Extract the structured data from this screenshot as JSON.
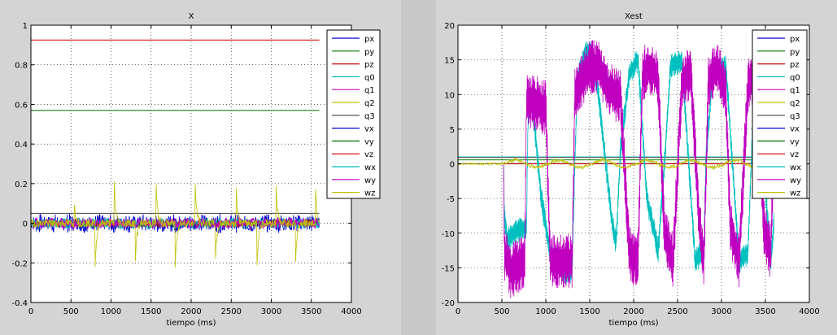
{
  "colors": {
    "px": "#0000cc",
    "py": "#007700",
    "pz": "#cc0000",
    "q0": "#00bfbf",
    "q1": "#bf00bf",
    "q2": "#bfbf00",
    "q3": "#404040",
    "vx": "#0000cc",
    "vy": "#007700",
    "vz": "#cc0000",
    "wx": "#00bfbf",
    "wy": "#bf00bf",
    "wz": "#bfbf00"
  },
  "chart_data": [
    {
      "type": "line",
      "title": "X",
      "xlabel": "tiempo (ms)",
      "ylabel": "",
      "xlim": [
        0,
        4000
      ],
      "ylim": [
        -0.4,
        1
      ],
      "xticks": [
        0,
        500,
        1000,
        1500,
        2000,
        2500,
        3000,
        3500,
        4000
      ],
      "yticks": [
        -0.4,
        -0.2,
        0,
        0.2,
        0.4,
        0.6,
        0.8,
        1
      ],
      "ytick_labels": [
        "-0.4",
        "-0.2",
        "0",
        "0.2",
        "0.4",
        "0.6",
        "0.8",
        "1"
      ],
      "grid": true,
      "legend": "top-right",
      "x_end": 3600,
      "series": [
        {
          "name": "px",
          "key": "px",
          "kind": "const",
          "value": 0.0
        },
        {
          "name": "py",
          "key": "py",
          "kind": "const",
          "value": 0.57
        },
        {
          "name": "pz",
          "key": "pz",
          "kind": "const",
          "value": 0.925
        },
        {
          "name": "q0",
          "key": "q0",
          "kind": "const",
          "value": 1.0
        },
        {
          "name": "q1",
          "key": "q1",
          "kind": "const",
          "value": 0.0
        },
        {
          "name": "q2",
          "key": "q2",
          "kind": "const",
          "value": 0.0
        },
        {
          "name": "q3",
          "key": "q3",
          "kind": "const",
          "value": 0.05
        },
        {
          "name": "vx",
          "key": "vx",
          "kind": "noise",
          "amp": 0.05,
          "freq": 60
        },
        {
          "name": "vy",
          "key": "vy",
          "kind": "noise",
          "amp": 0.02,
          "freq": 45
        },
        {
          "name": "vz",
          "key": "vz",
          "kind": "noise",
          "amp": 0.02,
          "freq": 40
        },
        {
          "name": "wx",
          "key": "wx",
          "kind": "noise",
          "amp": 0.03,
          "freq": 55
        },
        {
          "name": "wy",
          "key": "wy",
          "kind": "noise",
          "amp": 0.03,
          "freq": 50
        },
        {
          "name": "wz",
          "key": "wz",
          "kind": "spikes",
          "amp": 0.02,
          "spikes": [
            [
              540,
              0.12
            ],
            [
              800,
              -0.24
            ],
            [
              1040,
              0.21
            ],
            [
              1300,
              -0.24
            ],
            [
              1560,
              0.22
            ],
            [
              1800,
              -0.24
            ],
            [
              2050,
              0.2
            ],
            [
              2300,
              -0.24
            ],
            [
              2560,
              0.2
            ],
            [
              2820,
              -0.24
            ],
            [
              3060,
              0.2
            ],
            [
              3300,
              -0.24
            ],
            [
              3550,
              0.2
            ]
          ]
        }
      ]
    },
    {
      "type": "line",
      "title": "Xest",
      "xlabel": "tiempo (ms)",
      "ylabel": "",
      "xlim": [
        0,
        4000
      ],
      "ylim": [
        -20,
        20
      ],
      "xticks": [
        0,
        500,
        1000,
        1500,
        2000,
        2500,
        3000,
        3500,
        4000
      ],
      "yticks": [
        -20,
        -15,
        -10,
        -5,
        0,
        5,
        10,
        15,
        20
      ],
      "ytick_labels": [
        "-20",
        "-15",
        "-10",
        "-5",
        "0",
        "5",
        "10",
        "15",
        "20"
      ],
      "grid": true,
      "legend": "top-right",
      "x_end": 3600,
      "series": [
        {
          "name": "px",
          "key": "px",
          "kind": "const",
          "value": 0.0
        },
        {
          "name": "py",
          "key": "py",
          "kind": "const",
          "value": 0.57
        },
        {
          "name": "pz",
          "key": "pz",
          "kind": "const",
          "value": 0.925
        },
        {
          "name": "q0",
          "key": "q0",
          "kind": "const",
          "value": 1.0
        },
        {
          "name": "q1",
          "key": "q1",
          "kind": "const",
          "value": 0.0
        },
        {
          "name": "q2",
          "key": "q2",
          "kind": "const",
          "value": 0.0
        },
        {
          "name": "q3",
          "key": "q3",
          "kind": "const",
          "value": 0.05
        },
        {
          "name": "vx",
          "key": "vx",
          "kind": "const",
          "value": 0.0
        },
        {
          "name": "vy",
          "key": "vy",
          "kind": "const",
          "value": 0.0
        },
        {
          "name": "vz",
          "key": "vz",
          "kind": "const",
          "value": 0.0
        },
        {
          "name": "wx",
          "key": "wx",
          "kind": "osc",
          "start": 520,
          "points": [
            [
              520,
              0
            ],
            [
              530,
              -8
            ],
            [
              560,
              -11
            ],
            [
              640,
              -10
            ],
            [
              780,
              -9
            ],
            [
              800,
              8
            ],
            [
              850,
              8.5
            ],
            [
              950,
              -5
            ],
            [
              1050,
              -13
            ],
            [
              1200,
              -15.5
            ],
            [
              1300,
              -15.5
            ],
            [
              1330,
              0
            ],
            [
              1360,
              12
            ],
            [
              1450,
              16
            ],
            [
              1520,
              16
            ],
            [
              1600,
              10
            ],
            [
              1750,
              -8
            ],
            [
              1800,
              -11.5
            ],
            [
              1850,
              2
            ],
            [
              1950,
              13
            ],
            [
              2050,
              15
            ],
            [
              2150,
              -5
            ],
            [
              2280,
              -12.5
            ],
            [
              2350,
              0
            ],
            [
              2420,
              14
            ],
            [
              2550,
              15
            ],
            [
              2700,
              -14
            ],
            [
              2800,
              -12.5
            ],
            [
              2820,
              0
            ],
            [
              2900,
              13
            ],
            [
              3050,
              14
            ],
            [
              3200,
              -14
            ],
            [
              3300,
              -13
            ],
            [
              3350,
              4
            ],
            [
              3420,
              10
            ],
            [
              3480,
              0
            ],
            [
              3560,
              -14
            ],
            [
              3600,
              -8
            ]
          ],
          "amp": 1.8
        },
        {
          "name": "wy",
          "key": "wy",
          "kind": "osc",
          "start": 520,
          "points": [
            [
              520,
              0
            ],
            [
              530,
              -13
            ],
            [
              600,
              -15.5
            ],
            [
              760,
              -14
            ],
            [
              780,
              9
            ],
            [
              850,
              9
            ],
            [
              1000,
              8
            ],
            [
              1050,
              -14
            ],
            [
              1200,
              -14
            ],
            [
              1300,
              -14
            ],
            [
              1330,
              10
            ],
            [
              1400,
              12
            ],
            [
              1500,
              14
            ],
            [
              1600,
              14
            ],
            [
              1700,
              11
            ],
            [
              1800,
              10
            ],
            [
              1850,
              10
            ],
            [
              1950,
              -13
            ],
            [
              2050,
              -14
            ],
            [
              2100,
              13
            ],
            [
              2200,
              14
            ],
            [
              2280,
              12
            ],
            [
              2350,
              -10
            ],
            [
              2450,
              -14
            ],
            [
              2550,
              12
            ],
            [
              2650,
              13
            ],
            [
              2750,
              -9
            ],
            [
              2800,
              -14
            ],
            [
              2850,
              12
            ],
            [
              2950,
              14
            ],
            [
              3050,
              10
            ],
            [
              3100,
              -9
            ],
            [
              3200,
              -14
            ],
            [
              3300,
              11
            ],
            [
              3400,
              13
            ],
            [
              3480,
              -9
            ],
            [
              3560,
              -13
            ],
            [
              3600,
              5
            ]
          ],
          "amp": 4
        },
        {
          "name": "wz",
          "key": "wz",
          "kind": "wave",
          "amp": 0.5,
          "start": 520
        }
      ]
    }
  ]
}
